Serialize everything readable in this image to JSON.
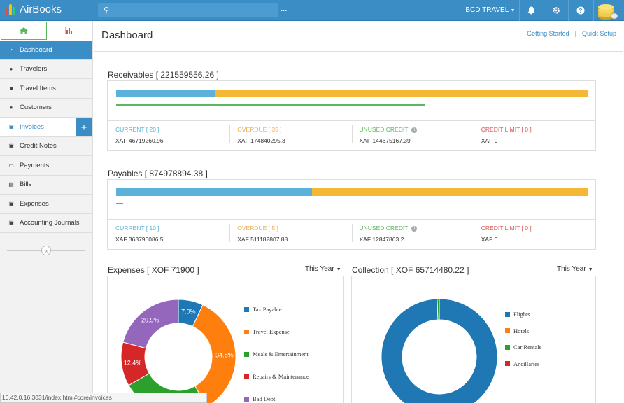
{
  "app": {
    "name": "AirBooks",
    "org_name": "BCD TRAVEL",
    "more": "...",
    "search_placeholder": ""
  },
  "colors": {
    "primary": "#3a8dc5",
    "blue": "#5bb1d9",
    "orange": "#f4b836",
    "green": "#5cb85c",
    "red": "#d9534f"
  },
  "sidebar": {
    "items": [
      {
        "label": "Dashboard",
        "icon": "dashboard-icon"
      },
      {
        "label": "Travelers",
        "icon": "user-icon"
      },
      {
        "label": "Travel Items",
        "icon": "briefcase-icon"
      },
      {
        "label": "Customers",
        "icon": "users-icon"
      },
      {
        "label": "Invoices",
        "icon": "cart-icon"
      },
      {
        "label": "Credit Notes",
        "icon": "cart-icon"
      },
      {
        "label": "Payments",
        "icon": "credit-card-icon"
      },
      {
        "label": "Bills",
        "icon": "document-icon"
      },
      {
        "label": "Expenses",
        "icon": "money-icon"
      },
      {
        "label": "Accounting Journals",
        "icon": "money-icon"
      }
    ],
    "add": "+",
    "collapse": "«"
  },
  "header": {
    "title": "Dashboard",
    "link_getting_started": "Getting Started",
    "separator": "|",
    "link_quick_setup": "Quick Setup"
  },
  "receivables": {
    "title": "Receivables [ 221559556.26 ]",
    "bar_fraction_current": 0.21,
    "green_fraction": 0.655,
    "stats": [
      {
        "label": "CURRENT [ 20 ]",
        "value": "XAF 46719260.96"
      },
      {
        "label": "OVERDUE [ 35 ]",
        "value": "XAF 174840295.3"
      },
      {
        "label": "UNUSED CREDIT",
        "value": "XAF 144675167.39"
      },
      {
        "label": "CREDIT LIMIT [ 0 ]",
        "value": "XAF 0"
      }
    ]
  },
  "payables": {
    "title": "Payables [ 874978894.38 ]",
    "bar_fraction_current": 0.415,
    "green_fraction": 0.015,
    "stats": [
      {
        "label": "CURRENT [ 10 ]",
        "value": "XAF 363796086.5"
      },
      {
        "label": "OVERDUE [ 5 ]",
        "value": "XAF 511182807.88"
      },
      {
        "label": "UNUSED CREDIT",
        "value": "XAF 12847863.2"
      },
      {
        "label": "CREDIT LIMIT [ 0 ]",
        "value": "XAF 0"
      }
    ]
  },
  "expenses": {
    "title": "Expenses [ XOF 71900 ]",
    "period": "This Year"
  },
  "collection": {
    "title": "Collection [ XOF 65714480.22 ]",
    "period": "This Year"
  },
  "status_url": "10.42.0.16:3031/index.html#core/invoices",
  "chart_data": [
    {
      "type": "pie",
      "categories": [
        "Tax Payable",
        "Travel Expense",
        "Meals & Entertainment",
        "Repairs & Maintenance",
        "Bad Debt"
      ],
      "values": [
        7.0,
        34.8,
        25.0,
        12.4,
        20.9
      ],
      "colors": [
        "#1f77b4",
        "#ff7f0e",
        "#2ca02c",
        "#d62728",
        "#9467bd"
      ],
      "legend_position": "right"
    },
    {
      "type": "pie",
      "categories": [
        "Flights",
        "Hotels",
        "Car Rentals",
        "Ancillaries"
      ],
      "values": [
        100.8,
        0,
        0.6,
        0
      ],
      "colors": [
        "#1f77b4",
        "#ff7f0e",
        "#2ca02c",
        "#d62728"
      ],
      "legend_position": "right"
    }
  ]
}
